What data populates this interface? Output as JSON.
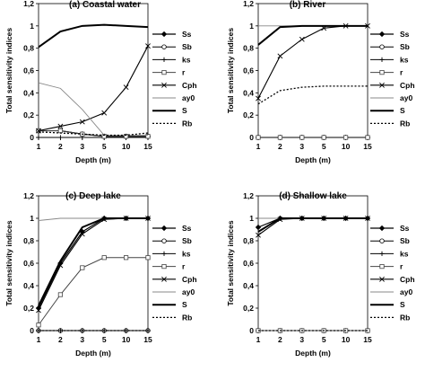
{
  "chart_data": [
    {
      "type": "line",
      "title": "(a) Coastal water",
      "xlabel": "Depth (m)",
      "ylabel": "Total sensitivity indices",
      "x": [
        "1",
        "2",
        "3",
        "5",
        "10",
        "15"
      ],
      "yticks": [
        "0",
        "0,2",
        "0,4",
        "0,6",
        "0,8",
        "1",
        "1,2"
      ],
      "ylim": [
        0,
        1.2
      ],
      "legend": "right",
      "series": [
        {
          "name": "Ss",
          "values": [
            0.06,
            0.06,
            0.03,
            0.01,
            0.01,
            0.01
          ]
        },
        {
          "name": "Sb",
          "values": [
            0.06,
            0.06,
            0.03,
            0.01,
            0.01,
            0.01
          ]
        },
        {
          "name": "ks",
          "values": [
            0.0,
            0.0,
            0.0,
            0.0,
            0.0,
            0.0
          ]
        },
        {
          "name": "r",
          "values": [
            0.06,
            0.06,
            0.03,
            0.01,
            0.01,
            0.01
          ]
        },
        {
          "name": "Cph",
          "values": [
            0.06,
            0.1,
            0.14,
            0.22,
            0.45,
            0.82
          ]
        },
        {
          "name": "ay0",
          "values": [
            0.49,
            0.44,
            0.25,
            0.02,
            0.02,
            0.02
          ]
        },
        {
          "name": "S",
          "values": [
            0.81,
            0.95,
            1.0,
            1.01,
            1.0,
            0.99
          ]
        },
        {
          "name": "Rb",
          "values": [
            0.05,
            0.04,
            0.03,
            0.02,
            0.02,
            0.04
          ]
        }
      ]
    },
    {
      "type": "line",
      "title": "(b) River",
      "xlabel": "Depth (m)",
      "ylabel": "Total sensitivity indices",
      "x": [
        "1",
        "2",
        "3",
        "5",
        "10",
        "15"
      ],
      "yticks": [
        "0",
        "0,2",
        "0,4",
        "0,6",
        "0,8",
        "1",
        "1,2"
      ],
      "ylim": [
        0,
        1.2
      ],
      "legend": "right",
      "series": [
        {
          "name": "Ss",
          "values": [
            0.0,
            0.0,
            0.0,
            0.0,
            0.0,
            0.0
          ]
        },
        {
          "name": "Sb",
          "values": [
            0.0,
            0.0,
            0.0,
            0.0,
            0.0,
            0.0
          ]
        },
        {
          "name": "ks",
          "values": [
            0.0,
            0.0,
            0.0,
            0.0,
            0.0,
            0.0
          ]
        },
        {
          "name": "r",
          "values": [
            0.0,
            0.0,
            0.0,
            0.0,
            0.0,
            0.0
          ]
        },
        {
          "name": "Cph",
          "values": [
            0.35,
            0.73,
            0.88,
            0.98,
            1.0,
            1.0
          ]
        },
        {
          "name": "ay0",
          "values": [
            1.0,
            1.0,
            1.0,
            1.0,
            1.0,
            1.0
          ]
        },
        {
          "name": "S",
          "values": [
            0.83,
            0.99,
            1.0,
            1.0,
            1.0,
            1.0
          ]
        },
        {
          "name": "Rb",
          "values": [
            0.3,
            0.42,
            0.45,
            0.46,
            0.46,
            0.46
          ]
        }
      ]
    },
    {
      "type": "line",
      "title": "(c) Deep lake",
      "xlabel": "Depth (m)",
      "ylabel": "Total sensitivity indices",
      "x": [
        "1",
        "2",
        "3",
        "5",
        "10",
        "15"
      ],
      "yticks": [
        "0",
        "0,2",
        "0,4",
        "0,6",
        "0,8",
        "1",
        "1,2"
      ],
      "ylim": [
        0,
        1.2
      ],
      "legend": "right",
      "series": [
        {
          "name": "Ss",
          "values": [
            0.2,
            0.6,
            0.88,
            1.0,
            1.0,
            1.0
          ]
        },
        {
          "name": "Sb",
          "values": [
            0.0,
            0.0,
            0.0,
            0.0,
            0.0,
            0.0
          ]
        },
        {
          "name": "ks",
          "values": [
            0.0,
            0.0,
            0.0,
            0.0,
            0.0,
            0.0
          ]
        },
        {
          "name": "r",
          "values": [
            0.05,
            0.32,
            0.56,
            0.65,
            0.65,
            0.65
          ]
        },
        {
          "name": "Cph",
          "values": [
            0.18,
            0.58,
            0.86,
            0.99,
            1.0,
            1.0
          ]
        },
        {
          "name": "ay0",
          "values": [
            0.98,
            1.0,
            1.0,
            1.0,
            1.0,
            1.0
          ]
        },
        {
          "name": "S",
          "values": [
            0.22,
            0.62,
            0.92,
            1.0,
            1.0,
            1.0
          ]
        },
        {
          "name": "Rb",
          "values": [
            0.0,
            0.0,
            0.0,
            0.0,
            0.0,
            0.0
          ]
        }
      ]
    },
    {
      "type": "line",
      "title": "(d) Shallow lake",
      "xlabel": "Depth (m)",
      "ylabel": "Total sensitivity indices",
      "x": [
        "1",
        "2",
        "3",
        "5",
        "10",
        "15"
      ],
      "yticks": [
        "0",
        "0,2",
        "0,4",
        "0,6",
        "0,8",
        "1",
        "1,2"
      ],
      "ylim": [
        0,
        1.2
      ],
      "legend": "right",
      "series": [
        {
          "name": "Ss",
          "values": [
            0.92,
            1.0,
            1.0,
            1.0,
            1.0,
            1.0
          ]
        },
        {
          "name": "Sb",
          "values": [
            0.0,
            0.0,
            0.0,
            0.0,
            0.0,
            0.0
          ]
        },
        {
          "name": "ks",
          "values": [
            0.0,
            0.0,
            0.0,
            0.0,
            0.0,
            0.0
          ]
        },
        {
          "name": "r",
          "values": [
            0.0,
            0.0,
            0.0,
            0.0,
            0.0,
            0.0
          ]
        },
        {
          "name": "Cph",
          "values": [
            0.85,
            0.99,
            1.0,
            1.0,
            1.0,
            1.0
          ]
        },
        {
          "name": "ay0",
          "values": [
            1.0,
            1.0,
            1.0,
            1.0,
            1.0,
            1.0
          ]
        },
        {
          "name": "S",
          "values": [
            0.88,
            1.0,
            1.0,
            1.0,
            1.0,
            1.0
          ]
        },
        {
          "name": "Rb",
          "values": [
            0.0,
            0.0,
            0.0,
            0.0,
            0.0,
            0.0
          ]
        }
      ]
    }
  ]
}
